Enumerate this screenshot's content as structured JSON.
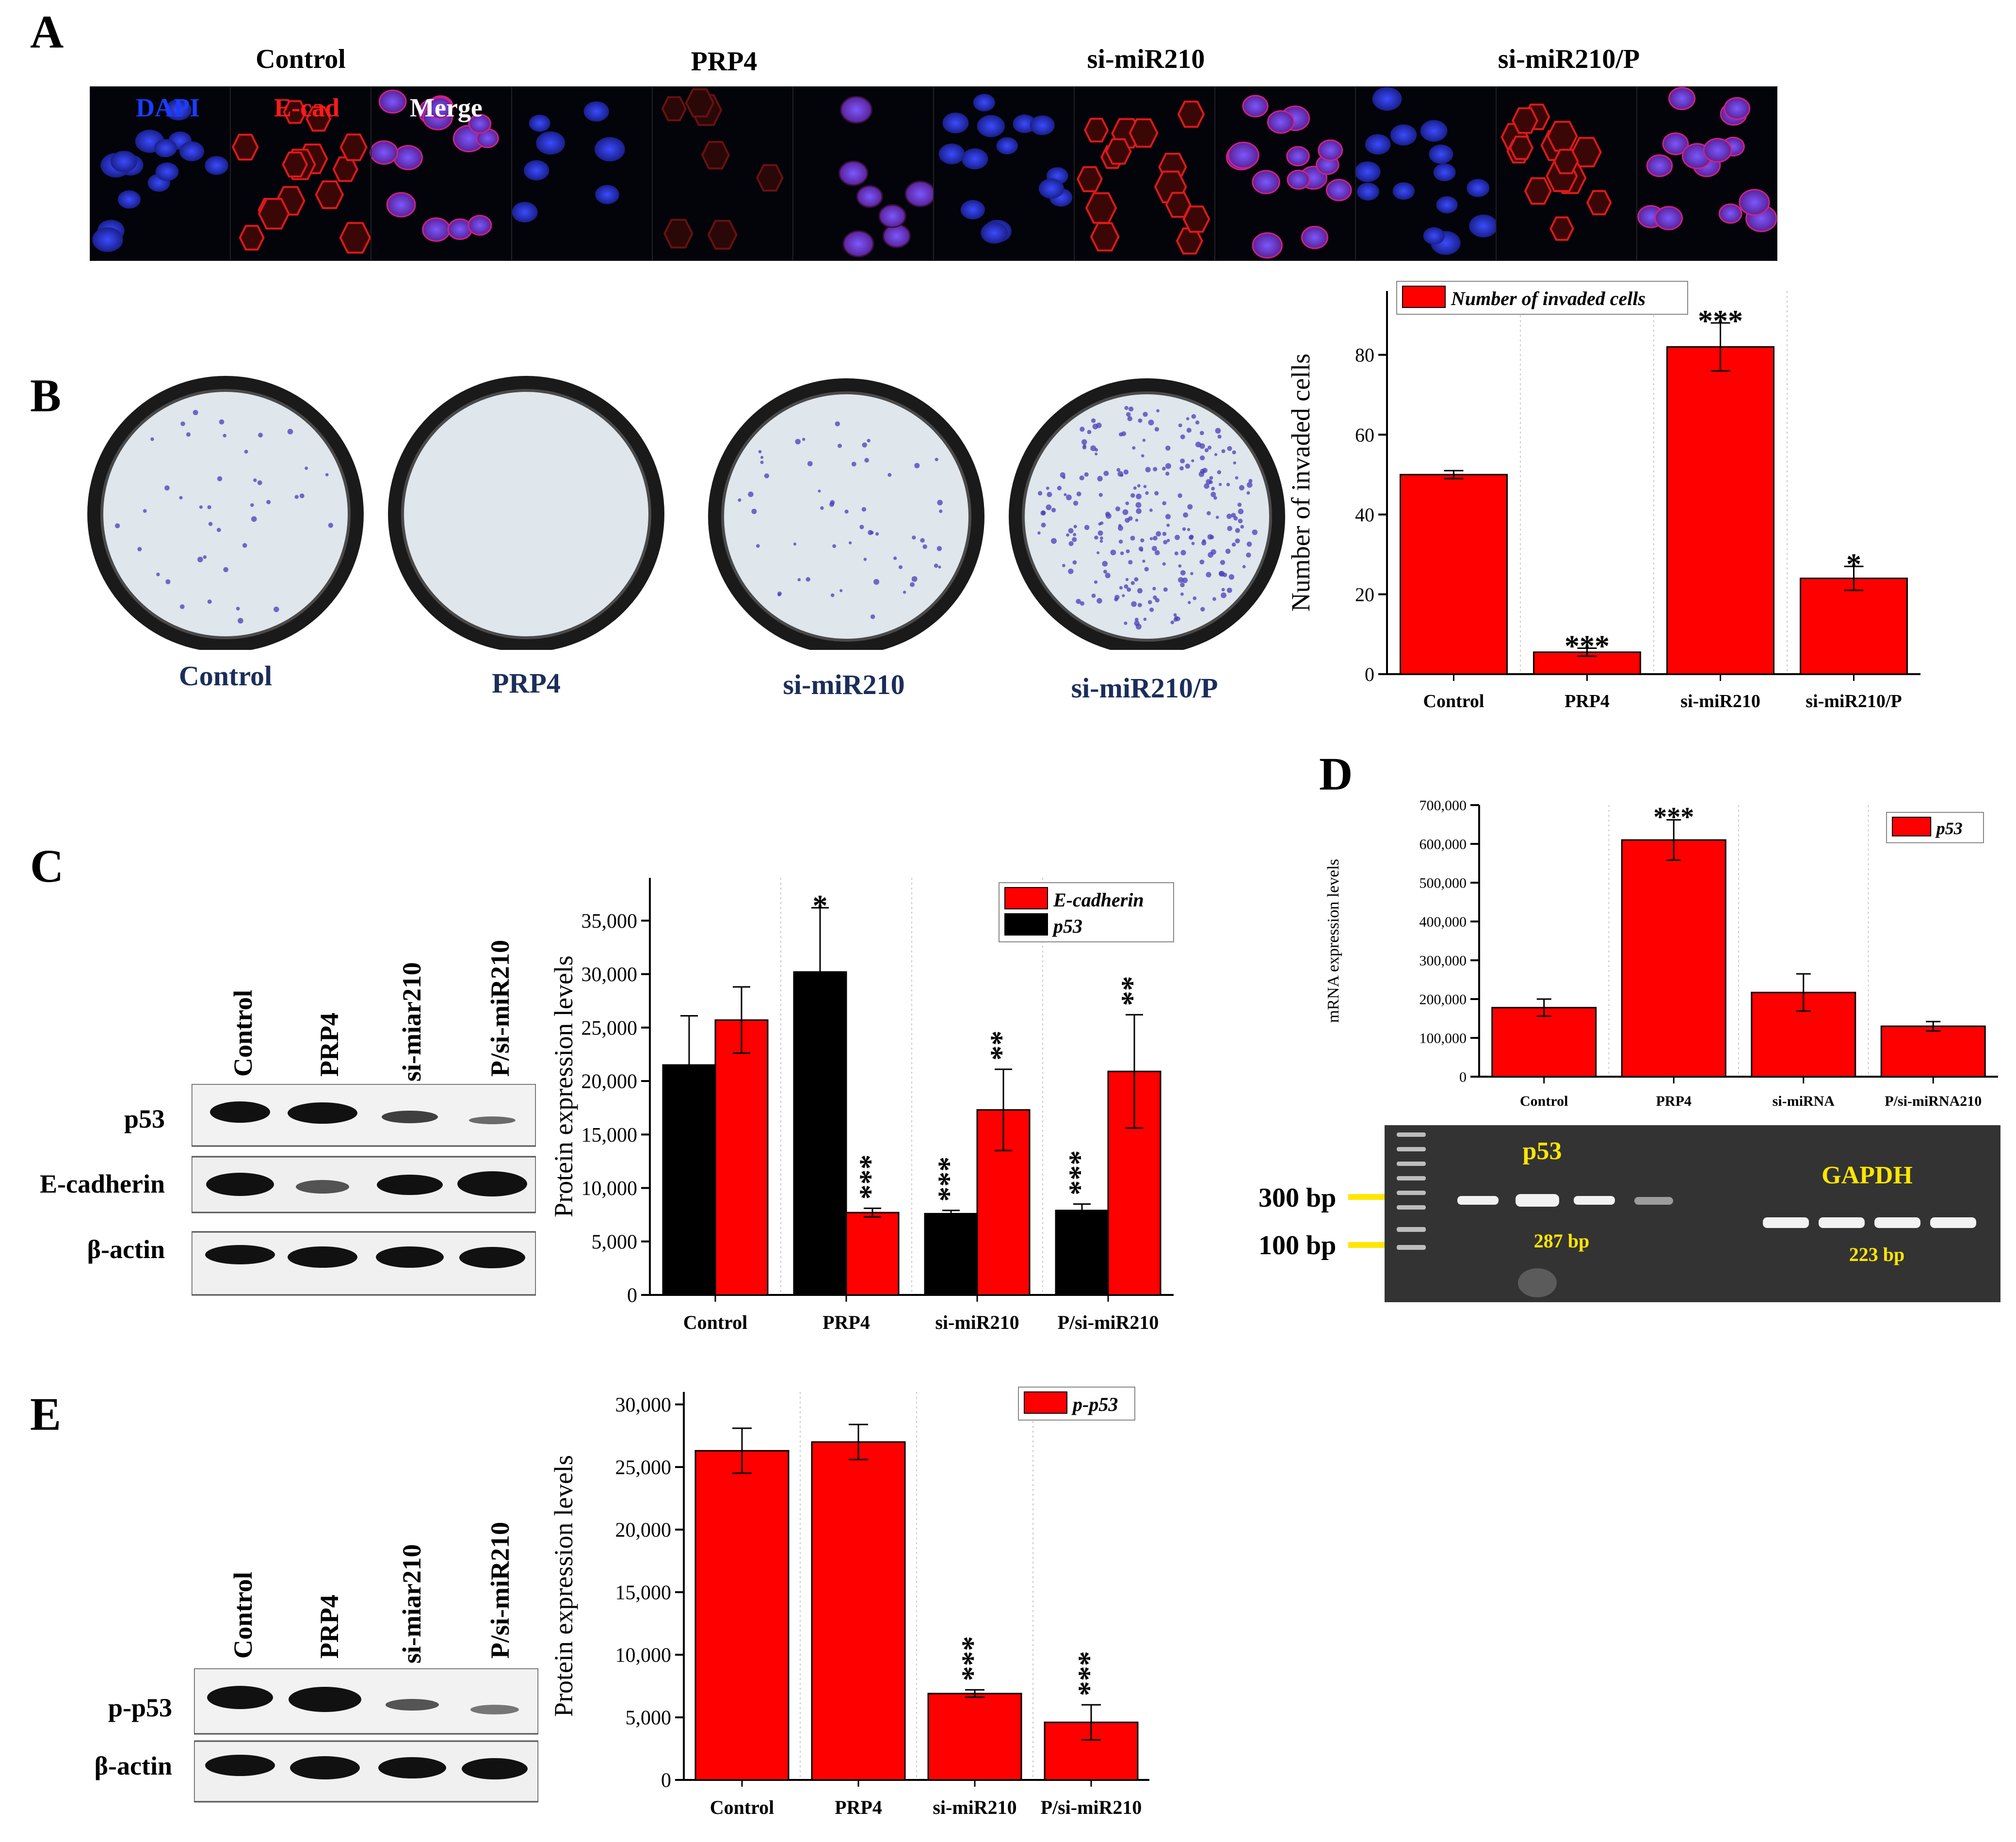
{
  "panels": {
    "A": "A",
    "B": "B",
    "C": "C",
    "D": "D",
    "E": "E"
  },
  "panel_a": {
    "headers": [
      "Control",
      "PRP4",
      "si-miR210",
      "si-miR210/P"
    ],
    "channel_labels": {
      "dapi": "DAPI",
      "ecad": "E-cad",
      "merge": "Merge"
    }
  },
  "panel_b": {
    "dish_labels": [
      "Control",
      "PRP4",
      "si-miR210",
      "si-miR210/P"
    ]
  },
  "panel_c": {
    "lane_labels": [
      "Control",
      "PRP4",
      "si-miar210",
      "P/si-miR210"
    ],
    "blot_labels": [
      "p53",
      "E-cadherin",
      "β-actin"
    ]
  },
  "panel_d": {
    "gel": {
      "marker_300": "300 bp",
      "marker_100": "100 bp",
      "p53": "p53",
      "p53_size": "287 bp",
      "gapdh": "GAPDH",
      "gapdh_size": "223 bp"
    }
  },
  "panel_e": {
    "lane_labels": [
      "Control",
      "PRP4",
      "si-miar210",
      "P/si-miR210"
    ],
    "blot_labels": [
      "p-p53",
      "β-actin"
    ]
  },
  "colors": {
    "red": "#ff0000",
    "black": "#000000",
    "gel_yellow": "#ffe600",
    "dish_label": "#1b2e5a"
  },
  "chart_data": [
    {
      "id": "B",
      "type": "bar",
      "categories": [
        "Control",
        "PRP4",
        "si-miR210",
        "si-miR210/P"
      ],
      "series": [
        {
          "name": "Number of invaded cells",
          "color": "#ff0000",
          "values": [
            50,
            5.5,
            82,
            24
          ],
          "errors": [
            1,
            1,
            6,
            3
          ]
        }
      ],
      "significance": [
        "",
        "***",
        "***",
        "*"
      ],
      "ylabel": "Number of invaded cells",
      "ylim": [
        0,
        96
      ],
      "yticks": [
        0,
        20,
        40,
        60,
        80
      ],
      "legend": "top-left"
    },
    {
      "id": "C",
      "type": "bar",
      "categories": [
        "Control",
        "PRP4",
        "si-miR210",
        "P/si-miR210"
      ],
      "series": [
        {
          "name": "p53",
          "color": "#000000",
          "values": [
            21500,
            30200,
            7600,
            7900
          ],
          "errors": [
            4600,
            6000,
            300,
            600
          ]
        },
        {
          "name": "E-cadherin",
          "color": "#ff0000",
          "values": [
            25700,
            7700,
            17300,
            20900
          ],
          "errors": [
            3100,
            400,
            3800,
            5300
          ]
        }
      ],
      "significance": {
        "p53": [
          "",
          "*",
          "***",
          "***"
        ],
        "E-cadherin": [
          "",
          "***",
          "**",
          "**"
        ]
      },
      "ylabel": "Protein expression levels",
      "ylim": [
        0,
        39000
      ],
      "yticks": [
        "0",
        "5,000",
        "10,000",
        "15,000",
        "20,000",
        "25,000",
        "30,000",
        "35,000"
      ],
      "legend": "top-right"
    },
    {
      "id": "D",
      "type": "bar",
      "categories": [
        "Control",
        "PRP4",
        "si-miRNA",
        "P/si-miRNA210"
      ],
      "series": [
        {
          "name": "p53",
          "color": "#ff0000",
          "values": [
            178000,
            610000,
            217000,
            130000
          ],
          "errors": [
            22000,
            52000,
            48000,
            12000
          ]
        }
      ],
      "significance": [
        "",
        "***",
        "",
        ""
      ],
      "ylabel": "mRNA expression levels",
      "ylim": [
        0,
        700000
      ],
      "yticks": [
        "0",
        "100,000",
        "200,000",
        "300,000",
        "400,000",
        "500,000",
        "600,000",
        "700,000"
      ],
      "legend": "top-right"
    },
    {
      "id": "E",
      "type": "bar",
      "categories": [
        "Control",
        "PRP4",
        "si-miR210",
        "P/si-miR210"
      ],
      "series": [
        {
          "name": "p-p53",
          "color": "#ff0000",
          "values": [
            26300,
            27000,
            6900,
            4600
          ],
          "errors": [
            1800,
            1400,
            300,
            1400
          ]
        }
      ],
      "significance": [
        "",
        "",
        "***",
        "***"
      ],
      "ylabel": "Protein expression levels",
      "ylim": [
        0,
        31000
      ],
      "yticks": [
        "0",
        "5,000",
        "10,000",
        "15,000",
        "20,000",
        "25,000",
        "30,000"
      ],
      "legend": "top-right"
    }
  ]
}
